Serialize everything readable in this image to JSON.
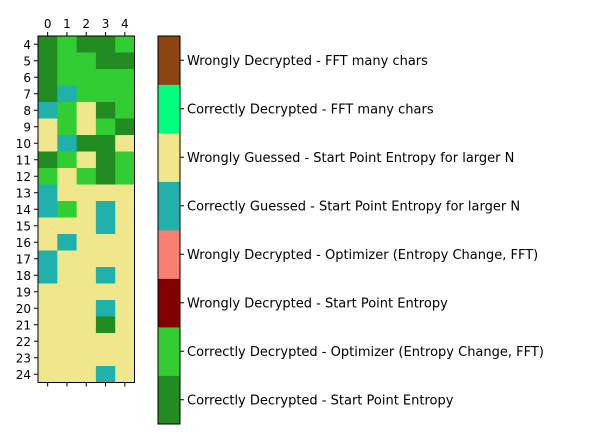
{
  "chart_data": {
    "type": "heatmap",
    "title": "",
    "xlabel": "",
    "ylabel": "",
    "x": [
      0,
      1,
      2,
      3,
      4
    ],
    "y": [
      4,
      5,
      6,
      7,
      8,
      9,
      10,
      11,
      12,
      13,
      14,
      15,
      16,
      17,
      18,
      19,
      20,
      21,
      22,
      23,
      24
    ],
    "x_tick_labels": [
      "0",
      "1",
      "2",
      "3",
      "4"
    ],
    "y_tick_labels": [
      "4",
      "5",
      "6",
      "7",
      "8",
      "9",
      "10",
      "11",
      "12",
      "13",
      "14",
      "15",
      "16",
      "17",
      "18",
      "19",
      "20",
      "21",
      "22",
      "23",
      "24"
    ],
    "x_axis_position": "top",
    "grid": false,
    "legend": "colorbar-right",
    "categories": [
      {
        "index": 0,
        "label": "Correctly Decrypted - Start Point Entropy",
        "color": "#228B22"
      },
      {
        "index": 1,
        "label": "Correctly Decrypted - Optimizer (Entropy Change, FFT)",
        "color": "#32CD32"
      },
      {
        "index": 2,
        "label": "Wrongly Decrypted - Start Point Entropy",
        "color": "#800000"
      },
      {
        "index": 3,
        "label": "Wrongly Decrypted - Optimizer (Entropy Change, FFT)",
        "color": "#FA8072"
      },
      {
        "index": 4,
        "label": "Correctly Guessed - Start Point Entropy for larger N",
        "color": "#20B2AA"
      },
      {
        "index": 5,
        "label": "Wrongly Guessed - Start Point Entropy for larger N",
        "color": "#F0E68C"
      },
      {
        "index": 6,
        "label": "Correctly Decrypted - FFT many chars",
        "color": "#00FF7F"
      },
      {
        "index": 7,
        "label": "Wrongly Decrypted - FFT many chars",
        "color": "#8B4513"
      }
    ],
    "values": [
      [
        0,
        1,
        0,
        0,
        1
      ],
      [
        0,
        1,
        1,
        0,
        0
      ],
      [
        0,
        1,
        1,
        1,
        1
      ],
      [
        0,
        4,
        1,
        1,
        1
      ],
      [
        4,
        1,
        5,
        0,
        1
      ],
      [
        5,
        1,
        5,
        1,
        0
      ],
      [
        5,
        4,
        0,
        0,
        5
      ],
      [
        0,
        1,
        5,
        0,
        1
      ],
      [
        1,
        5,
        1,
        0,
        1
      ],
      [
        4,
        5,
        5,
        5,
        5
      ],
      [
        4,
        1,
        5,
        4,
        5
      ],
      [
        5,
        5,
        5,
        4,
        5
      ],
      [
        5,
        4,
        5,
        5,
        5
      ],
      [
        4,
        5,
        5,
        5,
        5
      ],
      [
        4,
        5,
        5,
        4,
        5
      ],
      [
        5,
        5,
        5,
        5,
        5
      ],
      [
        5,
        5,
        5,
        4,
        5
      ],
      [
        5,
        5,
        5,
        0,
        5
      ],
      [
        5,
        5,
        5,
        5,
        5
      ],
      [
        5,
        5,
        5,
        5,
        5
      ],
      [
        5,
        5,
        5,
        4,
        5
      ]
    ]
  }
}
